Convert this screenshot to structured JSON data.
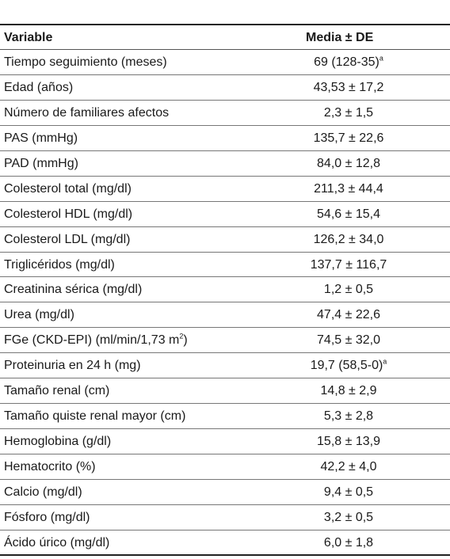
{
  "table": {
    "header": {
      "variable": "Variable",
      "value": "Media ± DE"
    },
    "rows": [
      {
        "variable": "Tiempo seguimiento (meses)",
        "value": "69 (128-35)",
        "value_sup": "a"
      },
      {
        "variable": "Edad (años)",
        "value": "43,53 ± 17,2"
      },
      {
        "variable": "Número de familiares afectos",
        "value": "2,3 ± 1,5"
      },
      {
        "variable": "PAS (mmHg)",
        "value": "135,7 ± 22,6"
      },
      {
        "variable": "PAD (mmHg)",
        "value": "84,0 ± 12,8"
      },
      {
        "variable": "Colesterol total (mg/dl)",
        "value": "211,3 ± 44,4"
      },
      {
        "variable": "Colesterol HDL (mg/dl)",
        "value": "54,6 ± 15,4"
      },
      {
        "variable": "Colesterol LDL (mg/dl)",
        "value": "126,2 ± 34,0"
      },
      {
        "variable": "Triglicéridos (mg/dl)",
        "value": "137,7 ± 116,7"
      },
      {
        "variable": "Creatinina sérica (mg/dl)",
        "value": "1,2 ± 0,5"
      },
      {
        "variable": "Urea (mg/dl)",
        "value": "47,4 ± 22,6"
      },
      {
        "variable": "FGe (CKD-EPI) (ml/min/1,73 m",
        "variable_sup": "2",
        "variable_tail": ")",
        "value": "74,5 ± 32,0"
      },
      {
        "variable": "Proteinuria en 24 h (mg)",
        "value": "19,7 (58,5-0)",
        "value_sup": "a"
      },
      {
        "variable": "Tamaño renal (cm)",
        "value": "14,8 ± 2,9"
      },
      {
        "variable": "Tamaño quiste renal mayor (cm)",
        "value": "5,3 ± 2,8"
      },
      {
        "variable": "Hemoglobina (g/dl)",
        "value": "15,8 ± 13,9"
      },
      {
        "variable": "Hematocrito (%)",
        "value": "42,2 ± 4,0"
      },
      {
        "variable": "Calcio (mg/dl)",
        "value": "9,4 ± 0,5"
      },
      {
        "variable": "Fósforo (mg/dl)",
        "value": "3,2 ± 0,5"
      },
      {
        "variable": "Ácido úrico (mg/dl)",
        "value": "6,0 ± 1,8"
      }
    ]
  }
}
